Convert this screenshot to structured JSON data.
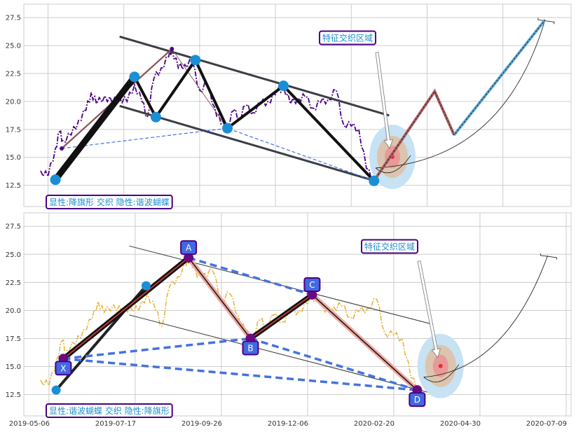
{
  "colors": {
    "pivot_blue": "#1a8fd6",
    "price_purple": "#4b0082",
    "price_yellow": "#e8b030",
    "label_border": "#4b0082",
    "label_text": "#1e8fd0",
    "point_label_fill": "#4169e1",
    "dashed_blue": "#4472e0",
    "channel": "#3a3d45",
    "zone_outer": "#c6e2f3",
    "zone_mid": "#dcc4ae",
    "zone_inner": "#e89a98",
    "zone_dot": "#e03040"
  },
  "chart_data": [
    {
      "type": "line",
      "panel": "top",
      "title": "",
      "xlabel": "",
      "ylabel": "",
      "grid": true,
      "xlim": [
        "2019-04-13",
        "2020-09-10"
      ],
      "ylim": [
        10.6,
        28.7
      ],
      "xtick_dates": [
        "2019-05-06",
        "2019-07-17",
        "2019-09-26",
        "2019-12-06",
        "2020-02-20",
        "2020-04-30",
        "2020-07-09"
      ],
      "xtick_labels_shown": false,
      "yticks": [
        12.5,
        15.0,
        17.5,
        20.0,
        22.5,
        25.0,
        27.5
      ],
      "ytick_labels": [
        "12.5",
        "15.0",
        "17.5",
        "20.0",
        "22.5",
        "25.0",
        "27.5"
      ],
      "price_series": {
        "style": "dashdot",
        "color": "#4b0082",
        "points": [
          [
            "2019-04-29",
            13.8
          ],
          [
            "2019-05-06",
            13.3
          ],
          [
            "2019-05-13",
            15.8
          ],
          [
            "2019-05-17",
            17.3
          ],
          [
            "2019-05-20",
            16.5
          ],
          [
            "2019-05-28",
            17.0
          ],
          [
            "2019-06-04",
            18.3
          ],
          [
            "2019-06-11",
            19.2
          ],
          [
            "2019-06-16",
            20.8
          ],
          [
            "2019-06-21",
            19.8
          ],
          [
            "2019-06-29",
            20.5
          ],
          [
            "2019-07-06",
            19.9
          ],
          [
            "2019-07-13",
            20.3
          ],
          [
            "2019-07-20",
            20.0
          ],
          [
            "2019-07-27",
            21.5
          ],
          [
            "2019-08-03",
            20.0
          ],
          [
            "2019-08-08",
            18.6
          ],
          [
            "2019-08-14",
            22.0
          ],
          [
            "2019-08-21",
            23.0
          ],
          [
            "2019-08-28",
            24.0
          ],
          [
            "2019-08-31",
            24.7
          ],
          [
            "2019-09-06",
            23.0
          ],
          [
            "2019-09-12",
            23.3
          ],
          [
            "2019-09-19",
            23.5
          ],
          [
            "2019-09-26",
            21.0
          ],
          [
            "2019-10-03",
            21.5
          ],
          [
            "2019-10-10",
            19.5
          ],
          [
            "2019-10-16",
            18.0
          ],
          [
            "2019-10-22",
            17.8
          ],
          [
            "2019-10-28",
            19.2
          ],
          [
            "2019-11-02",
            18.5
          ],
          [
            "2019-11-08",
            19.6
          ],
          [
            "2019-11-15",
            19.0
          ],
          [
            "2019-11-22",
            19.8
          ],
          [
            "2019-11-29",
            20.0
          ],
          [
            "2019-12-06",
            20.6
          ],
          [
            "2019-12-14",
            21.4
          ],
          [
            "2019-12-21",
            19.8
          ],
          [
            "2019-12-29",
            20.3
          ],
          [
            "2020-01-05",
            20.4
          ],
          [
            "2020-01-13",
            19.4
          ],
          [
            "2020-01-20",
            19.9
          ],
          [
            "2020-01-28",
            20.2
          ],
          [
            "2020-02-05",
            21.0
          ],
          [
            "2020-02-12",
            18.0
          ],
          [
            "2020-02-20",
            17.8
          ],
          [
            "2020-02-27",
            17.5
          ],
          [
            "2020-03-05",
            14.0
          ],
          [
            "2020-03-12",
            12.9
          ]
        ]
      },
      "pivots": [
        [
          "2019-05-13",
          13.0
        ],
        [
          "2019-07-27",
          22.2
        ],
        [
          "2019-08-16",
          18.6
        ],
        [
          "2019-09-22",
          23.7
        ],
        [
          "2019-10-22",
          17.6
        ],
        [
          "2019-12-14",
          21.4
        ],
        [
          "2020-03-12",
          12.9
        ]
      ],
      "channel_upper": [
        [
          "2019-07-13",
          25.8
        ],
        [
          "2020-03-26",
          18.75
        ]
      ],
      "channel_lower": [
        [
          "2019-07-13",
          19.6
        ],
        [
          "2020-03-27",
          12.5
        ]
      ],
      "secondary_line": [
        [
          "2019-05-19",
          15.8
        ],
        [
          "2019-08-31",
          24.7
        ],
        [
          "2019-10-22",
          17.6
        ]
      ],
      "dashed_line": [
        [
          "2019-05-19",
          15.8
        ],
        [
          "2019-10-22",
          17.6
        ],
        [
          "2020-03-12",
          12.9
        ]
      ],
      "projection": [
        [
          "2020-03-12",
          12.9
        ],
        [
          "2020-05-07",
          20.9
        ],
        [
          "2020-05-25",
          17.0
        ],
        [
          "2020-08-17",
          27.3
        ]
      ],
      "target_zone_center": [
        "2020-03-29",
        15.05
      ],
      "arc_end": [
        "2020-08-17",
        27.3
      ],
      "annotation": "特征交织区域",
      "pattern_label": "显性:降旗形 交织 隐性:谐波蝴蝶"
    },
    {
      "type": "line",
      "panel": "bottom",
      "title": "",
      "xlabel": "",
      "ylabel": "",
      "grid": true,
      "xlim": [
        "2019-04-15",
        "2020-07-13"
      ],
      "ylim": [
        10.6,
        28.7
      ],
      "xtick_dates": [
        "2019-05-06",
        "2019-07-17",
        "2019-09-26",
        "2019-12-06",
        "2020-02-20",
        "2020-04-30",
        "2020-07-09"
      ],
      "xtick_labels": [
        "2019-05-06",
        "2019-07-17",
        "2019-09-26",
        "2019-12-06",
        "2020-02-20",
        "2020-04-30",
        "2020-07-09"
      ],
      "yticks": [
        12.5,
        15.0,
        17.5,
        20.0,
        22.5,
        25.0,
        27.5
      ],
      "ytick_labels": [
        "12.5",
        "15.0",
        "17.5",
        "20.0",
        "22.5",
        "25.0",
        "27.5"
      ],
      "price_series": {
        "style": "dashdot",
        "color": "#e8b030",
        "points": [
          [
            "2019-04-29",
            13.8
          ],
          [
            "2019-05-06",
            13.3
          ],
          [
            "2019-05-13",
            15.8
          ],
          [
            "2019-05-17",
            17.3
          ],
          [
            "2019-05-20",
            16.5
          ],
          [
            "2019-05-28",
            17.0
          ],
          [
            "2019-06-04",
            18.3
          ],
          [
            "2019-06-11",
            19.2
          ],
          [
            "2019-06-16",
            20.8
          ],
          [
            "2019-06-21",
            19.8
          ],
          [
            "2019-06-29",
            20.5
          ],
          [
            "2019-07-06",
            19.9
          ],
          [
            "2019-07-13",
            20.3
          ],
          [
            "2019-07-20",
            20.0
          ],
          [
            "2019-07-27",
            21.5
          ],
          [
            "2019-08-03",
            20.0
          ],
          [
            "2019-08-08",
            18.6
          ],
          [
            "2019-08-14",
            22.0
          ],
          [
            "2019-08-21",
            23.0
          ],
          [
            "2019-08-28",
            24.0
          ],
          [
            "2019-08-31",
            24.7
          ],
          [
            "2019-09-06",
            23.0
          ],
          [
            "2019-09-12",
            23.3
          ],
          [
            "2019-09-19",
            23.5
          ],
          [
            "2019-09-26",
            21.0
          ],
          [
            "2019-10-03",
            21.5
          ],
          [
            "2019-10-10",
            19.5
          ],
          [
            "2019-10-16",
            18.0
          ],
          [
            "2019-10-22",
            17.8
          ],
          [
            "2019-10-28",
            19.2
          ],
          [
            "2019-11-02",
            18.5
          ],
          [
            "2019-11-08",
            19.6
          ],
          [
            "2019-11-15",
            19.0
          ],
          [
            "2019-11-22",
            19.8
          ],
          [
            "2019-11-29",
            20.0
          ],
          [
            "2019-12-06",
            20.6
          ],
          [
            "2019-12-14",
            21.4
          ],
          [
            "2019-12-21",
            19.8
          ],
          [
            "2019-12-29",
            20.3
          ],
          [
            "2020-01-05",
            20.4
          ],
          [
            "2020-01-13",
            19.4
          ],
          [
            "2020-01-20",
            19.9
          ],
          [
            "2020-01-28",
            20.2
          ],
          [
            "2020-02-05",
            21.0
          ],
          [
            "2020-02-12",
            18.0
          ],
          [
            "2020-02-20",
            17.8
          ],
          [
            "2020-02-27",
            17.5
          ],
          [
            "2020-03-05",
            14.0
          ],
          [
            "2020-03-12",
            12.9
          ]
        ]
      },
      "harmonic_points": [
        {
          "label": "X",
          "date": "2019-05-18",
          "value": 15.7,
          "label_pos": "below"
        },
        {
          "label": "A",
          "date": "2019-08-30",
          "value": 24.7,
          "label_pos": "above"
        },
        {
          "label": "B",
          "date": "2019-10-20",
          "value": 17.5,
          "label_pos": "below"
        },
        {
          "label": "C",
          "date": "2019-12-10",
          "value": 21.4,
          "label_pos": "above"
        },
        {
          "label": "D",
          "date": "2020-03-10",
          "value": 12.9,
          "label_pos": "below"
        }
      ],
      "flag_points": [
        [
          "2019-05-12",
          12.9
        ],
        [
          "2019-07-26",
          22.2
        ]
      ],
      "channel_upper": [
        [
          "2019-07-12",
          25.75
        ],
        [
          "2020-03-23",
          18.75
        ]
      ],
      "channel_lower": [
        [
          "2019-07-12",
          19.6
        ],
        [
          "2020-03-26",
          12.5
        ]
      ],
      "target_zone_center": [
        "2020-03-29",
        15.05
      ],
      "arc_end": [
        "2020-06-24",
        24.9
      ],
      "annotation": "特征交织区域",
      "pattern_label": "显性:谐波蝴蝶 交织 隐性:降旗形"
    }
  ]
}
